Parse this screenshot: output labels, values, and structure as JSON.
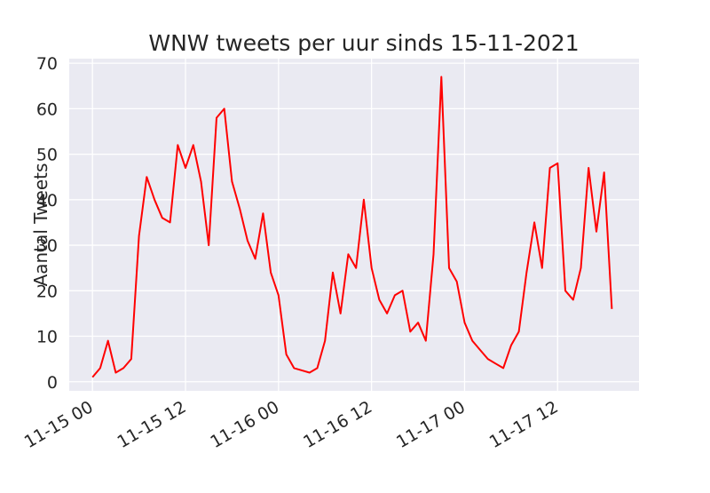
{
  "chart_data": {
    "type": "line",
    "title": "WNW tweets per uur sinds 15-11-2021",
    "xlabel": "",
    "ylabel": "Aantal Tweets",
    "x_tick_labels": [
      "11-15 00",
      "11-15 12",
      "11-16 00",
      "11-16 12",
      "11-17 00",
      "11-17 12"
    ],
    "x_tick_hours": [
      0,
      12,
      24,
      36,
      48,
      60
    ],
    "y_ticks": [
      0,
      10,
      20,
      30,
      40,
      50,
      60,
      70
    ],
    "ylim": [
      -2,
      71
    ],
    "xlim_hours": [
      -3,
      70.5
    ],
    "grid": true,
    "background": "#eaeaf2",
    "grid_color": "#ffffff",
    "series": [
      {
        "color": "#ff0000",
        "x_hours": [
          0,
          1,
          2,
          3,
          4,
          5,
          6,
          7,
          8,
          9,
          10,
          11,
          12,
          13,
          14,
          15,
          16,
          17,
          18,
          19,
          20,
          21,
          22,
          23,
          24,
          25,
          26,
          27,
          28,
          29,
          30,
          31,
          32,
          33,
          34,
          35,
          36,
          37,
          38,
          39,
          40,
          41,
          42,
          43,
          44,
          45,
          46,
          47,
          48,
          49,
          50,
          51,
          52,
          53,
          54,
          55,
          56,
          57,
          58,
          59,
          60,
          61,
          62,
          63,
          64,
          65,
          66,
          67
        ],
        "values": [
          1,
          3,
          9,
          2,
          3,
          5,
          32,
          45,
          40,
          36,
          35,
          52,
          47,
          52,
          44,
          30,
          58,
          60,
          44,
          38,
          31,
          27,
          37,
          24,
          19,
          6,
          3,
          2.5,
          2,
          3,
          9,
          24,
          15,
          28,
          25,
          40,
          25,
          18,
          15,
          19,
          20,
          11,
          13,
          9,
          28,
          67,
          25,
          22,
          13,
          9,
          7,
          5,
          4,
          3,
          8,
          11,
          24,
          35,
          25,
          47,
          48,
          20,
          18,
          25,
          47,
          33,
          46,
          16
        ]
      }
    ]
  }
}
